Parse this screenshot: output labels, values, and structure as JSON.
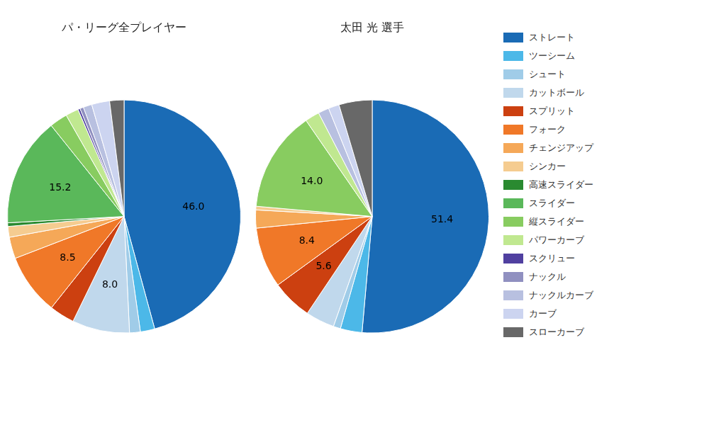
{
  "chart_data": [
    {
      "type": "pie",
      "title": "パ・リーグ全プレイヤー",
      "categories": [
        "ストレート",
        "ツーシーム",
        "シュート",
        "カットボール",
        "スプリット",
        "フォーク",
        "チェンジアップ",
        "シンカー",
        "高速スライダー",
        "スライダー",
        "縦スライダー",
        "パワーカーブ",
        "スクリュー",
        "ナックル",
        "ナックルカーブ",
        "カーブ",
        "スローカーブ"
      ],
      "values": [
        46.0,
        2.0,
        1.5,
        8.0,
        3.5,
        8.5,
        3.0,
        1.5,
        0.5,
        15.2,
        2.5,
        1.8,
        0.3,
        0.5,
        1.2,
        2.5,
        2.0
      ],
      "value_labels": [
        "46.0",
        null,
        null,
        "8.0",
        null,
        "8.5",
        null,
        null,
        null,
        "15.2",
        null,
        null,
        null,
        null,
        null,
        null,
        null
      ],
      "colors": [
        "#1a6bb5",
        "#4cb8e8",
        "#a0cce8",
        "#c0d8ec",
        "#cc4010",
        "#f07828",
        "#f5a858",
        "#f5cc90",
        "#2a8a30",
        "#5ab85a",
        "#88cc60",
        "#c0e890",
        "#5040a0",
        "#9090c0",
        "#b8c0e0",
        "#ccd4f0",
        "#686868"
      ]
    },
    {
      "type": "pie",
      "title": "太田 光 選手",
      "categories": [
        "ストレート",
        "ツーシーム",
        "シュート",
        "カットボール",
        "スプリット",
        "フォーク",
        "チェンジアップ",
        "シンカー",
        "高速スライダー",
        "スライダー",
        "縦スライダー",
        "パワーカーブ",
        "スクリュー",
        "ナックル",
        "ナックルカーブ",
        "カーブ",
        "スローカーブ"
      ],
      "values": [
        51.4,
        3.0,
        1.0,
        4.0,
        5.6,
        8.4,
        2.5,
        0.5,
        0.0,
        0.0,
        14.0,
        2.0,
        0.0,
        0.0,
        1.5,
        1.5,
        4.6
      ],
      "value_labels": [
        "51.4",
        null,
        null,
        null,
        "5.6",
        "8.4",
        null,
        null,
        null,
        null,
        "14.0",
        null,
        null,
        null,
        null,
        null,
        null
      ],
      "colors": [
        "#1a6bb5",
        "#4cb8e8",
        "#a0cce8",
        "#c0d8ec",
        "#cc4010",
        "#f07828",
        "#f5a858",
        "#f5cc90",
        "#2a8a30",
        "#5ab85a",
        "#88cc60",
        "#c0e890",
        "#5040a0",
        "#9090c0",
        "#b8c0e0",
        "#ccd4f0",
        "#686868"
      ],
      "legend": "right"
    }
  ]
}
